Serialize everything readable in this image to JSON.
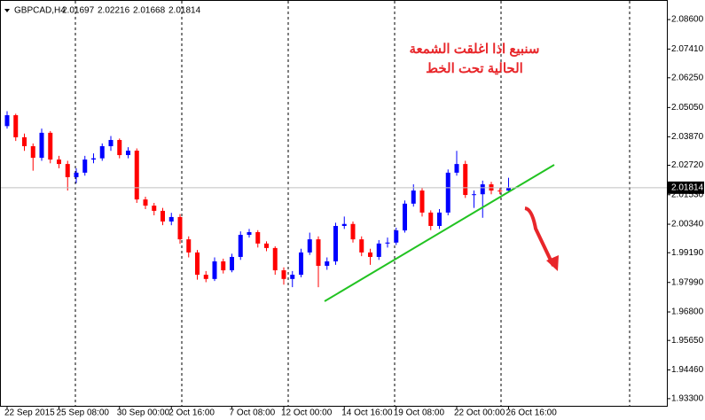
{
  "chart_data": {
    "type": "candlestick",
    "symbol": "GBPCAD,H4",
    "header_ohlc": [
      2.01697,
      2.02216,
      2.01668,
      2.01814
    ],
    "annotation": [
      "سنبيع اذا اغلقت الشمعة",
      "الحالية تحت الخط"
    ],
    "up_color": "#0000ff",
    "down_color": "#ff0000",
    "categories": [
      "22 Sep 2015",
      null,
      null,
      null,
      null,
      null,
      "25 Sep 08:00",
      null,
      null,
      null,
      null,
      null,
      null,
      "30 Sep 00:00",
      null,
      null,
      null,
      null,
      null,
      "2 Oct 16:00",
      null,
      null,
      null,
      null,
      null,
      null,
      "7 Oct 08:00",
      null,
      null,
      null,
      null,
      null,
      "12 Oct 00:00",
      null,
      null,
      null,
      null,
      null,
      null,
      "14 Oct 16:00",
      null,
      null,
      null,
      null,
      null,
      "19 Oct 08:00",
      null,
      null,
      null,
      null,
      null,
      null,
      "22 Oct 00:00",
      null,
      null,
      null,
      null,
      null,
      "26 Oct 16:00"
    ],
    "open": [
      2.043,
      2.0474,
      2.0385,
      2.0349,
      2.0302,
      2.0403,
      2.0295,
      2.0277,
      2.0224,
      2.0242,
      2.0295,
      2.03,
      2.0349,
      2.0374,
      2.0313,
      2.0331,
      2.0134,
      2.0109,
      2.0088,
      2.0045,
      2.0063,
      1.9973,
      1.992,
      1.983,
      1.9813,
      1.9884,
      1.9848,
      1.9902,
      1.9991,
      2.0002,
      1.9956,
      1.9938,
      1.9848,
      1.9813,
      1.983,
      1.992,
      1.9973,
      1.9866,
      1.9884,
      2.0027,
      2.0035,
      1.9973,
      1.992,
      1.9902,
      1.9956,
      1.996,
      2.0009,
      2.0117,
      2.017,
      2.0081,
      2.0027,
      2.0081,
      2.0242,
      2.0277,
      2.0152,
      2.0155,
      2.0195,
      2.017,
      2.01697
    ],
    "high": [
      2.049,
      2.048,
      2.04,
      2.036,
      2.042,
      2.041,
      2.031,
      2.029,
      2.026,
      2.031,
      2.032,
      2.036,
      2.039,
      2.038,
      2.0345,
      2.034,
      2.0145,
      2.012,
      2.01,
      2.008,
      2.0075,
      1.9985,
      1.993,
      1.9845,
      1.99,
      1.9895,
      1.9915,
      2.0005,
      2.0015,
      2.001,
      1.9965,
      1.9945,
      1.986,
      1.9845,
      1.9935,
      2.0,
      1.9985,
      1.99,
      2.004,
      2.0065,
      2.0045,
      1.9985,
      1.9935,
      1.997,
      1.998,
      2.002,
      2.013,
      2.0195,
      2.018,
      2.009,
      2.0095,
      2.0255,
      2.033,
      2.029,
      2.017,
      2.021,
      2.0205,
      2.018,
      2.02216
    ],
    "low": [
      2.042,
      2.037,
      2.033,
      2.025,
      2.029,
      2.028,
      2.026,
      2.017,
      2.02,
      2.023,
      2.028,
      2.029,
      2.033,
      2.03,
      2.03,
      2.012,
      2.0095,
      2.007,
      2.003,
      2.003,
      1.9955,
      1.99,
      1.981,
      1.98,
      1.9805,
      1.9835,
      1.984,
      1.989,
      1.998,
      1.994,
      1.9925,
      1.983,
      1.979,
      1.978,
      1.982,
      1.991,
      1.978,
      1.985,
      1.987,
      2.0015,
      1.996,
      1.9905,
      1.987,
      1.989,
      1.994,
      1.995,
      2.0,
      2.0105,
      2.0065,
      2.001,
      2.0015,
      2.007,
      2.023,
      2.014,
      2.01,
      2.006,
      2.0155,
      2.0155,
      2.01668
    ],
    "close": [
      2.0474,
      2.0385,
      2.0349,
      2.0302,
      2.0403,
      2.0295,
      2.0277,
      2.0224,
      2.0242,
      2.0295,
      2.03,
      2.0349,
      2.0374,
      2.0313,
      2.0331,
      2.0134,
      2.0109,
      2.0088,
      2.0045,
      2.0063,
      1.9973,
      1.992,
      1.983,
      1.9813,
      1.9884,
      1.9848,
      1.9902,
      1.9991,
      2.0002,
      1.9956,
      1.9938,
      1.9848,
      1.9813,
      1.983,
      1.992,
      1.9973,
      1.9866,
      1.9884,
      2.0027,
      2.0035,
      1.9973,
      1.992,
      1.9902,
      1.9956,
      1.996,
      2.0009,
      2.0117,
      2.017,
      2.0081,
      2.0027,
      2.0081,
      2.0242,
      2.0277,
      2.0152,
      2.0155,
      2.0195,
      2.017,
      2.0167,
      2.01814
    ],
    "ylim": [
      1.9301,
      2.0939
    ],
    "yticks": [
      {
        "value": 2.086,
        "label": "2.08600"
      },
      {
        "value": 2.0741,
        "label": "2.07410"
      },
      {
        "value": 2.0625,
        "label": "2.06250"
      },
      {
        "value": 2.0505,
        "label": "2.05050"
      },
      {
        "value": 2.0387,
        "label": "2.03870"
      },
      {
        "value": 2.0272,
        "label": "2.02720"
      },
      {
        "value": 2.0153,
        "label": "2.01530"
      },
      {
        "value": 2.0034,
        "label": "2.00340"
      },
      {
        "value": 1.9919,
        "label": "1.99190"
      },
      {
        "value": 1.9799,
        "label": "1.97990"
      },
      {
        "value": 1.968,
        "label": "1.96800"
      },
      {
        "value": 1.9565,
        "label": "1.95650"
      },
      {
        "value": 1.9446,
        "label": "1.94460"
      },
      {
        "value": 1.933,
        "label": "1.93300"
      }
    ]
  }
}
